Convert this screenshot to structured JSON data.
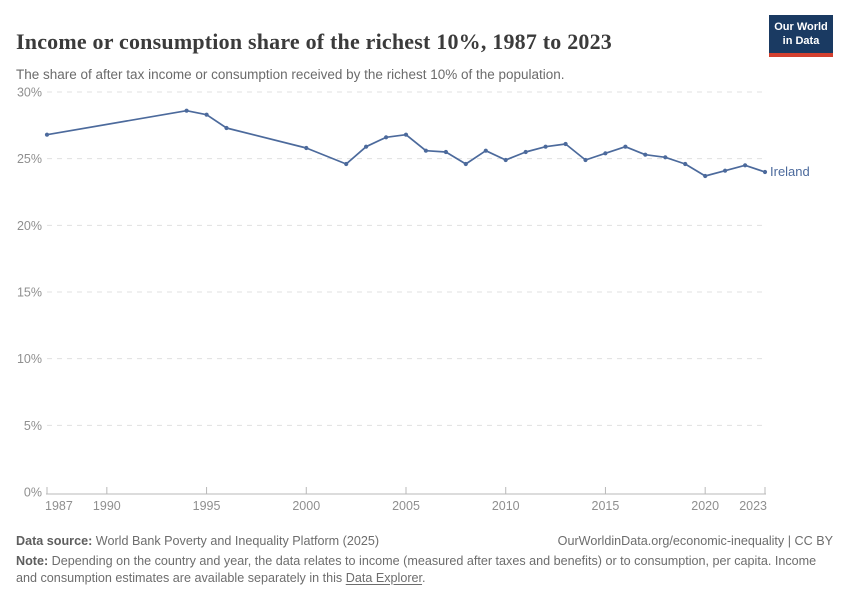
{
  "header": {
    "title": "Income or consumption share of the richest 10%, 1987 to 2023",
    "subtitle": "The share of after tax income or consumption received by the richest 10% of the population.",
    "logo": {
      "line1": "Our World",
      "line2": "in Data"
    }
  },
  "chart_data": {
    "type": "line",
    "title": "Income or consumption share of the richest 10%, 1987 to 2023",
    "xlabel": "",
    "ylabel": "",
    "unit": "%",
    "xlim": [
      1987,
      2023
    ],
    "ylim": [
      0,
      30
    ],
    "x_ticks": [
      1987,
      1990,
      1995,
      2000,
      2005,
      2010,
      2015,
      2020,
      2023
    ],
    "y_ticks": [
      0,
      5,
      10,
      15,
      20,
      25,
      30
    ],
    "grid": "horizontal-dashed",
    "legend_position": "end-of-line",
    "series": [
      {
        "name": "Ireland",
        "color": "#4c6a9c",
        "points": [
          [
            1987,
            26.8
          ],
          [
            1994,
            28.6
          ],
          [
            1995,
            28.3
          ],
          [
            1996,
            27.3
          ],
          [
            2000,
            25.8
          ],
          [
            2002,
            24.6
          ],
          [
            2003,
            25.9
          ],
          [
            2004,
            26.6
          ],
          [
            2005,
            26.8
          ],
          [
            2006,
            25.6
          ],
          [
            2007,
            25.5
          ],
          [
            2008,
            24.6
          ],
          [
            2009,
            25.6
          ],
          [
            2010,
            24.9
          ],
          [
            2011,
            25.5
          ],
          [
            2012,
            25.9
          ],
          [
            2013,
            26.1
          ],
          [
            2014,
            24.9
          ],
          [
            2015,
            25.4
          ],
          [
            2016,
            25.9
          ],
          [
            2017,
            25.3
          ],
          [
            2018,
            25.1
          ],
          [
            2019,
            24.6
          ],
          [
            2020,
            23.7
          ],
          [
            2021,
            24.1
          ],
          [
            2022,
            24.5
          ],
          [
            2023,
            24.0
          ]
        ]
      }
    ],
    "colors": {
      "grid": "#e0e0e0",
      "axis": "#b8b8b8",
      "tick_label": "#8f8f8f"
    }
  },
  "footer": {
    "source_label": "Data source:",
    "source_text": " World Bank Poverty and Inequality Platform (2025)",
    "link_text": "OurWorldinData.org/economic-inequality | CC BY",
    "note_label": "Note:",
    "note_text": " Depending on the country and year, the data relates to income (measured after taxes and benefits) or to consumption, per capita. Income and consumption estimates are available separately in this ",
    "note_link": "Data Explorer",
    "note_period": "."
  }
}
